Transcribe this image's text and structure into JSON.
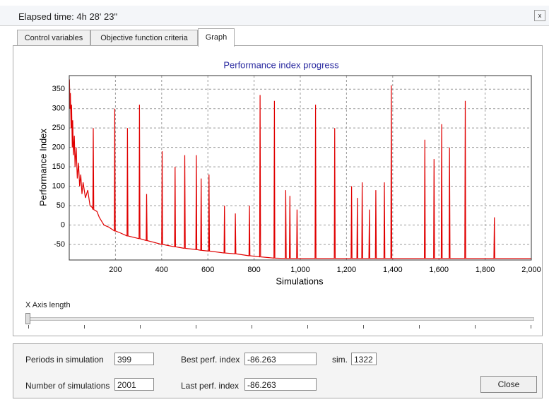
{
  "window": {
    "title": "Elapsed time: 4h 28' 23\"",
    "tabs": [
      "Control variables",
      "Objective function criteria",
      "Graph"
    ]
  },
  "chart_data": {
    "type": "line",
    "title": "Performance index progress",
    "xlabel": "Simulations",
    "ylabel": "Performance Index",
    "color": "#e00000",
    "grid": true,
    "xlim": [
      0,
      2000
    ],
    "ylim": [
      -90,
      385
    ],
    "xticks": [
      200,
      400,
      600,
      800,
      {
        "value": 1000,
        "label": "1,000"
      },
      {
        "value": 1200,
        "label": "1,200"
      },
      {
        "value": 1400,
        "label": "1,400"
      },
      {
        "value": 1600,
        "label": "1,600"
      },
      {
        "value": 1800,
        "label": "1,800"
      },
      {
        "value": 2000,
        "label": "2,000"
      }
    ],
    "yticks": [
      -50,
      0,
      50,
      100,
      150,
      200,
      250,
      300,
      350
    ],
    "x": [
      1,
      3,
      5,
      8,
      10,
      13,
      15,
      18,
      22,
      25,
      30,
      35,
      40,
      45,
      50,
      55,
      60,
      70,
      80,
      90,
      100,
      102,
      104,
      106,
      120,
      130,
      140,
      150,
      170,
      195,
      197,
      199,
      220,
      250,
      252,
      254,
      280,
      302,
      304,
      306,
      333,
      335,
      337,
      370,
      400,
      402,
      404,
      456,
      458,
      460,
      498,
      500,
      502,
      548,
      550,
      552,
      569,
      571,
      573,
      603,
      605,
      607,
      670,
      672,
      674,
      717,
      719,
      721,
      778,
      780,
      782,
      824,
      826,
      828,
      886,
      888,
      890,
      935,
      937,
      939,
      953,
      955,
      957,
      984,
      986,
      988,
      1064,
      1066,
      1068,
      1147,
      1149,
      1151,
      1220,
      1222,
      1224,
      1245,
      1247,
      1249,
      1266,
      1268,
      1270,
      1297,
      1299,
      1301,
      1325,
      1327,
      1329,
      1362,
      1364,
      1366,
      1392,
      1394,
      1396,
      1537,
      1539,
      1541,
      1577,
      1579,
      1581,
      1610,
      1612,
      1614,
      1644,
      1646,
      1648,
      1712,
      1714,
      1716,
      1838,
      1840,
      1842,
      1999
    ],
    "values": [
      375,
      300,
      340,
      250,
      310,
      200,
      270,
      180,
      230,
      150,
      200,
      120,
      160,
      100,
      130,
      80,
      110,
      70,
      90,
      50,
      45,
      40,
      250,
      40,
      35,
      20,
      10,
      0,
      -5,
      -15,
      300,
      -15,
      -20,
      -28,
      250,
      -28,
      -32,
      -35,
      310,
      -35,
      -40,
      80,
      -40,
      -45,
      -50,
      190,
      -50,
      -56,
      150,
      -56,
      -60,
      180,
      -60,
      -63,
      180,
      -63,
      -65,
      120,
      -65,
      -67,
      130,
      -67,
      -72,
      50,
      -72,
      -74,
      30,
      -74,
      -79,
      50,
      -79,
      -82,
      335,
      -82,
      -85,
      320,
      -85,
      -86,
      90,
      -86,
      -86,
      75,
      -86,
      -86,
      40,
      -86,
      -86,
      310,
      -86,
      -86,
      250,
      -86,
      -86,
      100,
      -86,
      -86,
      70,
      -86,
      -86,
      110,
      -86,
      -86,
      40,
      -86,
      -86,
      90,
      -86,
      -86,
      110,
      -86,
      -86,
      360,
      -86,
      -86,
      220,
      -86,
      -86,
      170,
      -86,
      -86,
      260,
      -86,
      -86,
      200,
      -86,
      -86,
      320,
      -86,
      -86,
      20,
      -86,
      -86
    ]
  },
  "slider": {
    "label": "X Axis length"
  },
  "fields": {
    "periods_label": "Periods in simulation",
    "periods": 399,
    "best_label": "Best perf. index",
    "best": -86.263,
    "sim_label": "sim.",
    "sim": 1322,
    "count_label": "Number of simulations",
    "count": 2001,
    "last_label": "Last perf. index",
    "last": -86.263
  },
  "button": "Close"
}
